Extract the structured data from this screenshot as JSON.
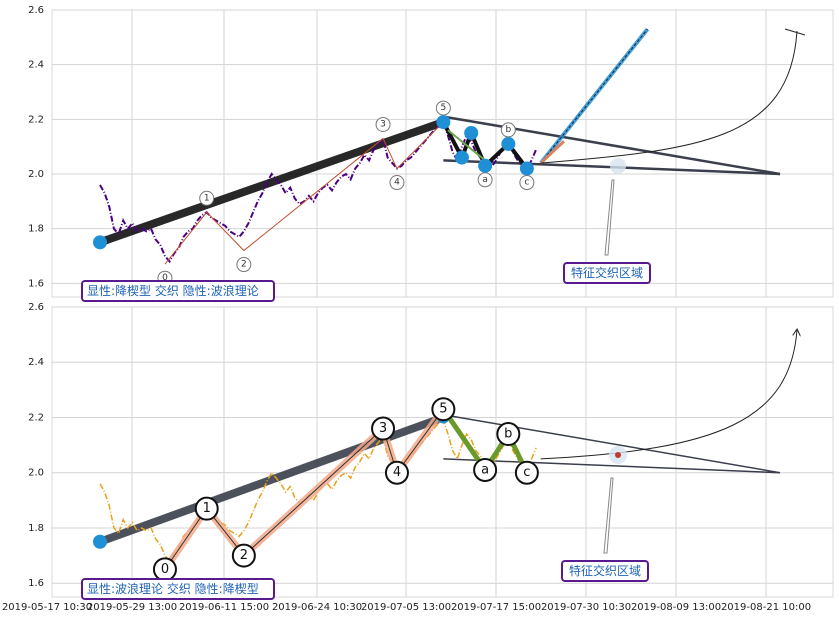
{
  "chart_data": [
    {
      "type": "line",
      "x_ticks": [
        "2019-05-17 10:30",
        "2019-05-29 13:00",
        "2019-06-11 15:00",
        "2019-06-24 10:30",
        "2019-07-05 13:00",
        "2019-07-17 15:00",
        "2019-07-30 10:30",
        "2019-08-09 13:00",
        "2019-08-21 10:00"
      ],
      "y_ticks": [
        "1.6",
        "1.8",
        "2.0",
        "2.2",
        "2.4",
        "2.6"
      ],
      "ylim": [
        1.55,
        2.6
      ],
      "grid": true,
      "price_color": "#4b0082",
      "price": [
        [
          0,
          1.96
        ],
        [
          1,
          1.93
        ],
        [
          2,
          1.88
        ],
        [
          3,
          1.8
        ],
        [
          4,
          1.78
        ],
        [
          5,
          1.83
        ],
        [
          6,
          1.8
        ],
        [
          7,
          1.82
        ],
        [
          8,
          1.79
        ],
        [
          9,
          1.8
        ],
        [
          10,
          1.79
        ],
        [
          11,
          1.8
        ],
        [
          12,
          1.76
        ],
        [
          13,
          1.74
        ],
        [
          14,
          1.7
        ],
        [
          15,
          1.68
        ],
        [
          16,
          1.71
        ],
        [
          17,
          1.73
        ],
        [
          18,
          1.77
        ],
        [
          19,
          1.79
        ],
        [
          20,
          1.8
        ],
        [
          21,
          1.83
        ],
        [
          22,
          1.85
        ],
        [
          23,
          1.86
        ],
        [
          24,
          1.84
        ],
        [
          25,
          1.83
        ],
        [
          26,
          1.82
        ],
        [
          27,
          1.81
        ],
        [
          28,
          1.79
        ],
        [
          29,
          1.78
        ],
        [
          30,
          1.77
        ],
        [
          31,
          1.79
        ],
        [
          32,
          1.82
        ],
        [
          33,
          1.86
        ],
        [
          34,
          1.9
        ],
        [
          35,
          1.93
        ],
        [
          36,
          1.97
        ],
        [
          37,
          2.0
        ],
        [
          38,
          1.98
        ],
        [
          39,
          1.96
        ],
        [
          40,
          1.93
        ],
        [
          41,
          1.95
        ],
        [
          42,
          1.91
        ],
        [
          43,
          1.89
        ],
        [
          44,
          1.9
        ],
        [
          45,
          1.92
        ],
        [
          46,
          1.9
        ],
        [
          47,
          1.93
        ],
        [
          48,
          1.95
        ],
        [
          49,
          1.96
        ],
        [
          50,
          1.94
        ],
        [
          51,
          1.97
        ],
        [
          52,
          1.99
        ],
        [
          53,
          2.0
        ],
        [
          54,
          1.98
        ],
        [
          55,
          2.02
        ],
        [
          56,
          2.04
        ],
        [
          57,
          2.07
        ],
        [
          58,
          2.05
        ],
        [
          59,
          2.09
        ],
        [
          60,
          2.11
        ],
        [
          61,
          2.13
        ],
        [
          62,
          2.06
        ],
        [
          63,
          2.04
        ],
        [
          64,
          2.02
        ],
        [
          65,
          2.03
        ],
        [
          66,
          2.05
        ],
        [
          67,
          2.06
        ],
        [
          68,
          2.08
        ],
        [
          69,
          2.1
        ],
        [
          70,
          2.12
        ],
        [
          71,
          2.14
        ],
        [
          72,
          2.16
        ],
        [
          73,
          2.18
        ],
        [
          74,
          2.19
        ],
        [
          75,
          2.14
        ],
        [
          76,
          2.08
        ],
        [
          77,
          2.05
        ],
        [
          78,
          2.1
        ],
        [
          79,
          2.14
        ],
        [
          80,
          2.12
        ],
        [
          81,
          2.08
        ],
        [
          82,
          2.06
        ],
        [
          83,
          2.04
        ],
        [
          84,
          2.02
        ],
        [
          85,
          2.04
        ],
        [
          86,
          2.07
        ],
        [
          87,
          2.1
        ],
        [
          88,
          2.12
        ],
        [
          89,
          2.08
        ],
        [
          90,
          2.05
        ],
        [
          91,
          2.03
        ],
        [
          92,
          2.02
        ],
        [
          93,
          2.05
        ],
        [
          94,
          2.09
        ]
      ],
      "wave_points": [
        {
          "label": "0",
          "x": 14,
          "y": 1.67
        },
        {
          "label": "1",
          "x": 23,
          "y": 1.86
        },
        {
          "label": "2",
          "x": 31,
          "y": 1.72
        },
        {
          "label": "3",
          "x": 61,
          "y": 2.13
        },
        {
          "label": "4",
          "x": 64,
          "y": 2.02
        },
        {
          "label": "5",
          "x": 74,
          "y": 2.19
        },
        {
          "label": "a",
          "x": 83,
          "y": 2.03
        },
        {
          "label": "b",
          "x": 88,
          "y": 2.11
        },
        {
          "label": "c",
          "x": 92,
          "y": 2.02
        }
      ],
      "wedge_pivots": [
        {
          "x": 0,
          "y": 1.75
        },
        {
          "x": 74,
          "y": 2.19
        },
        {
          "x": 78,
          "y": 2.06
        },
        {
          "x": 80,
          "y": 2.15
        },
        {
          "x": 83,
          "y": 2.03
        },
        {
          "x": 88,
          "y": 2.11
        },
        {
          "x": 92,
          "y": 2.02
        }
      ],
      "target_line": {
        "from": [
          95,
          2.04
        ],
        "to": [
          118,
          2.53
        ]
      },
      "annotation_box": "显性:降楔型 交织 隐性:波浪理论",
      "zone_label": "特征交织区域"
    },
    {
      "type": "line",
      "x_ticks": [
        "2019-05-17 10:30",
        "2019-05-29 13:00",
        "2019-06-11 15:00",
        "2019-06-24 10:30",
        "2019-07-05 13:00",
        "2019-07-17 15:00",
        "2019-07-30 10:30",
        "2019-08-09 13:00",
        "2019-08-21 10:00"
      ],
      "y_ticks": [
        "1.6",
        "1.8",
        "2.0",
        "2.2",
        "2.4",
        "2.6"
      ],
      "ylim": [
        1.55,
        2.6
      ],
      "grid": true,
      "price_color": "#e6a21a",
      "wave_points": [
        {
          "label": "0",
          "x": 14,
          "y": 1.65
        },
        {
          "label": "1",
          "x": 23,
          "y": 1.87
        },
        {
          "label": "2",
          "x": 31,
          "y": 1.7
        },
        {
          "label": "3",
          "x": 61,
          "y": 2.16
        },
        {
          "label": "4",
          "x": 64,
          "y": 2.0
        },
        {
          "label": "5",
          "x": 74,
          "y": 2.23
        },
        {
          "label": "a",
          "x": 83,
          "y": 2.01
        },
        {
          "label": "b",
          "x": 88,
          "y": 2.14
        },
        {
          "label": "c",
          "x": 92,
          "y": 2.0
        }
      ],
      "annotation_box": "显性:波浪理论 交织 隐性:降楔型",
      "zone_label": "特征交织区域"
    }
  ]
}
